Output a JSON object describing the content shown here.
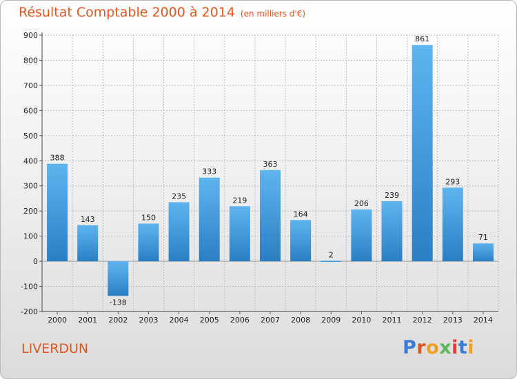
{
  "chart_data": {
    "type": "bar",
    "title": "Résultat Comptable 2000 à 2014",
    "subtitle": "(en milliers d'€)",
    "categories": [
      "2000",
      "2001",
      "2002",
      "2003",
      "2004",
      "2005",
      "2006",
      "2007",
      "2008",
      "2009",
      "2010",
      "2011",
      "2012",
      "2013",
      "2014"
    ],
    "values": [
      388,
      143,
      -138,
      150,
      235,
      333,
      219,
      363,
      164,
      2,
      206,
      239,
      861,
      293,
      71
    ],
    "data_labels": [
      "388",
      "143",
      "-138",
      "150",
      "235",
      "333",
      "219",
      "363",
      "164",
      "2",
      "206",
      "239",
      "861",
      "293",
      "71"
    ],
    "ylim": [
      -200,
      900
    ],
    "yticks": [
      -200,
      -100,
      0,
      100,
      200,
      300,
      400,
      500,
      600,
      700,
      800,
      900
    ],
    "ytick_labels": [
      "-200",
      "-100",
      "0",
      "100",
      "200",
      "300",
      "400",
      "500",
      "600",
      "700",
      "800",
      "900"
    ],
    "grid": true,
    "bar_color": "#4aa3e2",
    "title_color": "#e0561f"
  },
  "footer": {
    "commune": "LIVERDUN"
  },
  "logo": {
    "text": "Proxiti",
    "letters": [
      "P",
      "r",
      "o",
      "x",
      "i",
      "t",
      "i"
    ],
    "colors": [
      "#3a7bd5",
      "#e0561f",
      "#f0a020",
      "#5cb85c",
      "#e03a3a",
      "#3a7bd5",
      "#f0a020"
    ]
  }
}
